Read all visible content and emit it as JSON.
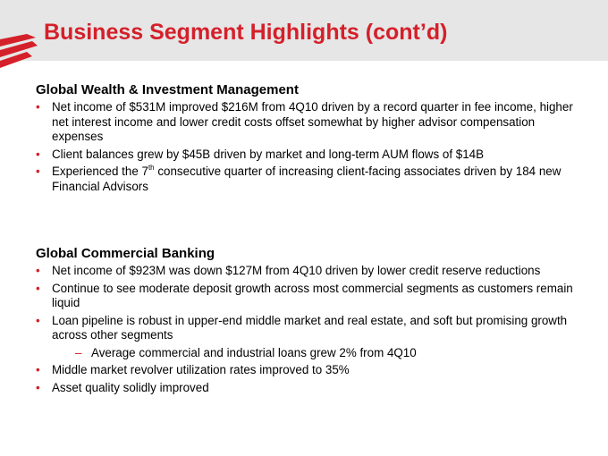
{
  "header": {
    "title": "Business Segment Highlights (cont’d)"
  },
  "sections": [
    {
      "heading": "Global Wealth & Investment Management",
      "bullets": [
        {
          "text": "Net income of $531M improved $216M from 4Q10 driven by a record quarter in fee income, higher net interest income and lower credit costs offset somewhat by higher advisor compensation expenses"
        },
        {
          "text": "Client balances grew by $45B driven by market and long-term AUM flows of $14B"
        },
        {
          "text_before": "Experienced the 7",
          "superscript": "th",
          "text_after": " consecutive quarter of increasing client-facing associates driven by 184 new Financial Advisors"
        }
      ]
    },
    {
      "heading": "Global Commercial Banking",
      "bullets": [
        {
          "text": "Net income of $923M was down $127M from 4Q10 driven by lower credit reserve reductions"
        },
        {
          "text": "Continue to see moderate deposit growth across most commercial segments as customers remain liquid"
        },
        {
          "text": "Loan pipeline is robust in upper-end middle market and real estate, and soft but promising growth across other segments",
          "sub_bullets": [
            "Average commercial and industrial loans grew 2% from 4Q10"
          ]
        },
        {
          "text": "Middle market revolver utilization rates improved to 35%"
        },
        {
          "text": "Asset quality solidly improved"
        }
      ]
    }
  ]
}
